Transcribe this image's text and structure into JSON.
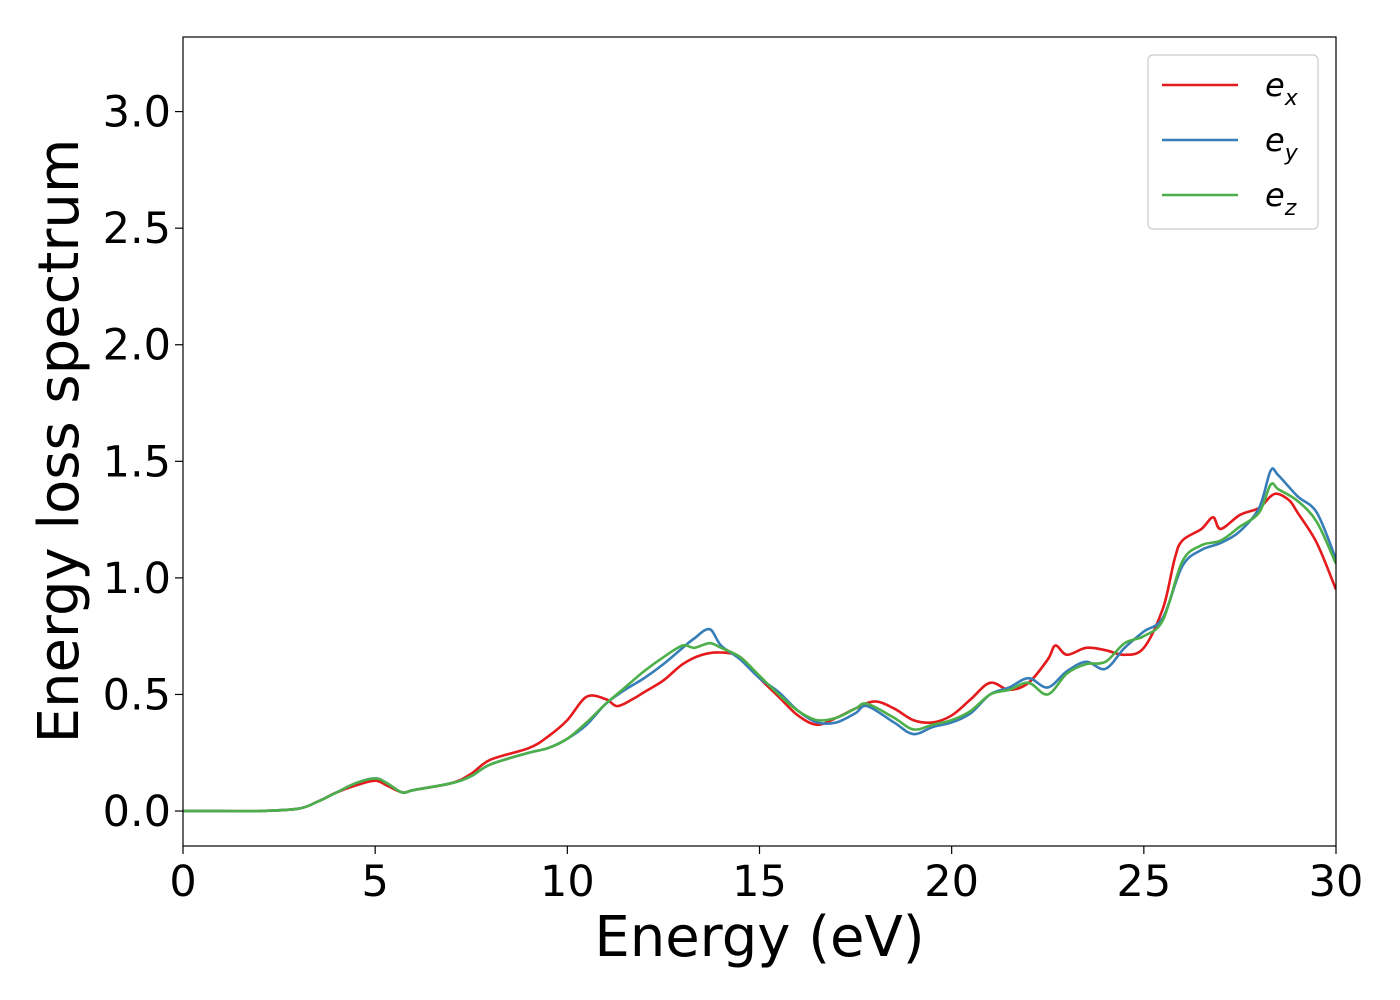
{
  "chart_data": {
    "type": "line",
    "title": "",
    "xlabel": "Energy (eV)",
    "ylabel": "Energy loss spectrum",
    "xlim": [
      0,
      30
    ],
    "ylim": [
      -0.15,
      3.32
    ],
    "xticks": [
      0,
      5,
      10,
      15,
      20,
      25,
      30
    ],
    "xtick_labels": [
      "0",
      "5",
      "10",
      "15",
      "20",
      "25",
      "30"
    ],
    "yticks": [
      0.0,
      0.5,
      1.0,
      1.5,
      2.0,
      2.5,
      3.0
    ],
    "ytick_labels": [
      "0.0",
      "0.5",
      "1.0",
      "1.5",
      "2.0",
      "2.5",
      "3.0"
    ],
    "grid": false,
    "legend_position": "top-right",
    "series": [
      {
        "name": "e",
        "subscript": "x",
        "color": "#e41a1c",
        "x": [
          0,
          1,
          2,
          3,
          3.5,
          4,
          4.5,
          5,
          5.3,
          5.7,
          6,
          7,
          7.5,
          8,
          9,
          9.5,
          10,
          10.5,
          11,
          11.3,
          11.7,
          12,
          12.5,
          13,
          13.5,
          14,
          14.5,
          15,
          15.5,
          16,
          16.5,
          17,
          17.5,
          18,
          18.5,
          19,
          19.5,
          20,
          20.5,
          21,
          21.5,
          22,
          22.5,
          22.7,
          23,
          23.5,
          24,
          24.5,
          25,
          25.5,
          25.8,
          26,
          26.5,
          26.8,
          27,
          27.5,
          28,
          28.3,
          28.5,
          28.8,
          29,
          29.5,
          30
        ],
        "y": [
          0,
          0,
          0,
          0.01,
          0.04,
          0.08,
          0.11,
          0.13,
          0.11,
          0.08,
          0.09,
          0.12,
          0.16,
          0.22,
          0.27,
          0.32,
          0.39,
          0.49,
          0.48,
          0.45,
          0.48,
          0.51,
          0.56,
          0.63,
          0.67,
          0.68,
          0.66,
          0.57,
          0.49,
          0.41,
          0.37,
          0.4,
          0.44,
          0.47,
          0.44,
          0.39,
          0.38,
          0.41,
          0.48,
          0.55,
          0.52,
          0.55,
          0.65,
          0.71,
          0.67,
          0.7,
          0.69,
          0.67,
          0.7,
          0.87,
          1.08,
          1.16,
          1.21,
          1.26,
          1.21,
          1.27,
          1.3,
          1.35,
          1.36,
          1.33,
          1.28,
          1.15,
          0.95
        ]
      },
      {
        "name": "e",
        "subscript": "y",
        "color": "#377eb8",
        "x": [
          0,
          1,
          2,
          3,
          3.5,
          4,
          4.5,
          5,
          5.3,
          5.7,
          6,
          7,
          7.5,
          8,
          9,
          9.5,
          10,
          10.5,
          11,
          11.5,
          12,
          12.5,
          13,
          13.3,
          13.7,
          14,
          14.5,
          15,
          15.5,
          16,
          16.5,
          17,
          17.5,
          17.8,
          18.5,
          19,
          19.5,
          20,
          20.5,
          21,
          21.5,
          22,
          22.5,
          23,
          23.5,
          24,
          24.5,
          25,
          25.5,
          26,
          26.5,
          27,
          27.5,
          28,
          28.3,
          28.5,
          29,
          29.5,
          30
        ],
        "y": [
          0,
          0,
          0,
          0.01,
          0.04,
          0.08,
          0.12,
          0.14,
          0.12,
          0.08,
          0.09,
          0.12,
          0.15,
          0.2,
          0.25,
          0.27,
          0.31,
          0.37,
          0.46,
          0.52,
          0.57,
          0.63,
          0.7,
          0.74,
          0.78,
          0.71,
          0.65,
          0.57,
          0.51,
          0.43,
          0.38,
          0.38,
          0.42,
          0.45,
          0.38,
          0.33,
          0.36,
          0.38,
          0.42,
          0.5,
          0.53,
          0.57,
          0.53,
          0.6,
          0.64,
          0.61,
          0.7,
          0.77,
          0.83,
          1.05,
          1.12,
          1.15,
          1.2,
          1.3,
          1.46,
          1.44,
          1.35,
          1.28,
          1.08
        ]
      },
      {
        "name": "e",
        "subscript": "z",
        "color": "#4daf4a",
        "x": [
          0,
          1,
          2,
          3,
          3.5,
          4,
          4.5,
          5,
          5.3,
          5.7,
          6,
          7,
          7.5,
          8,
          9,
          9.5,
          10,
          10.5,
          11,
          11.5,
          12,
          12.5,
          13,
          13.3,
          13.7,
          14,
          14.5,
          15,
          15.5,
          16,
          16.5,
          17,
          17.5,
          17.8,
          18.5,
          19,
          19.5,
          20,
          20.5,
          21,
          21.5,
          22,
          22.5,
          23,
          23.5,
          24,
          24.5,
          25,
          25.5,
          26,
          26.5,
          27,
          27.5,
          28,
          28.3,
          28.5,
          29,
          29.5,
          30
        ],
        "y": [
          0,
          0,
          0,
          0.01,
          0.04,
          0.08,
          0.12,
          0.14,
          0.12,
          0.08,
          0.09,
          0.12,
          0.15,
          0.2,
          0.25,
          0.27,
          0.31,
          0.38,
          0.46,
          0.53,
          0.6,
          0.66,
          0.71,
          0.7,
          0.72,
          0.7,
          0.66,
          0.58,
          0.5,
          0.43,
          0.39,
          0.4,
          0.44,
          0.46,
          0.4,
          0.35,
          0.37,
          0.39,
          0.43,
          0.5,
          0.52,
          0.55,
          0.5,
          0.59,
          0.63,
          0.64,
          0.72,
          0.75,
          0.82,
          1.07,
          1.14,
          1.16,
          1.22,
          1.28,
          1.4,
          1.38,
          1.33,
          1.24,
          1.06
        ]
      }
    ]
  }
}
